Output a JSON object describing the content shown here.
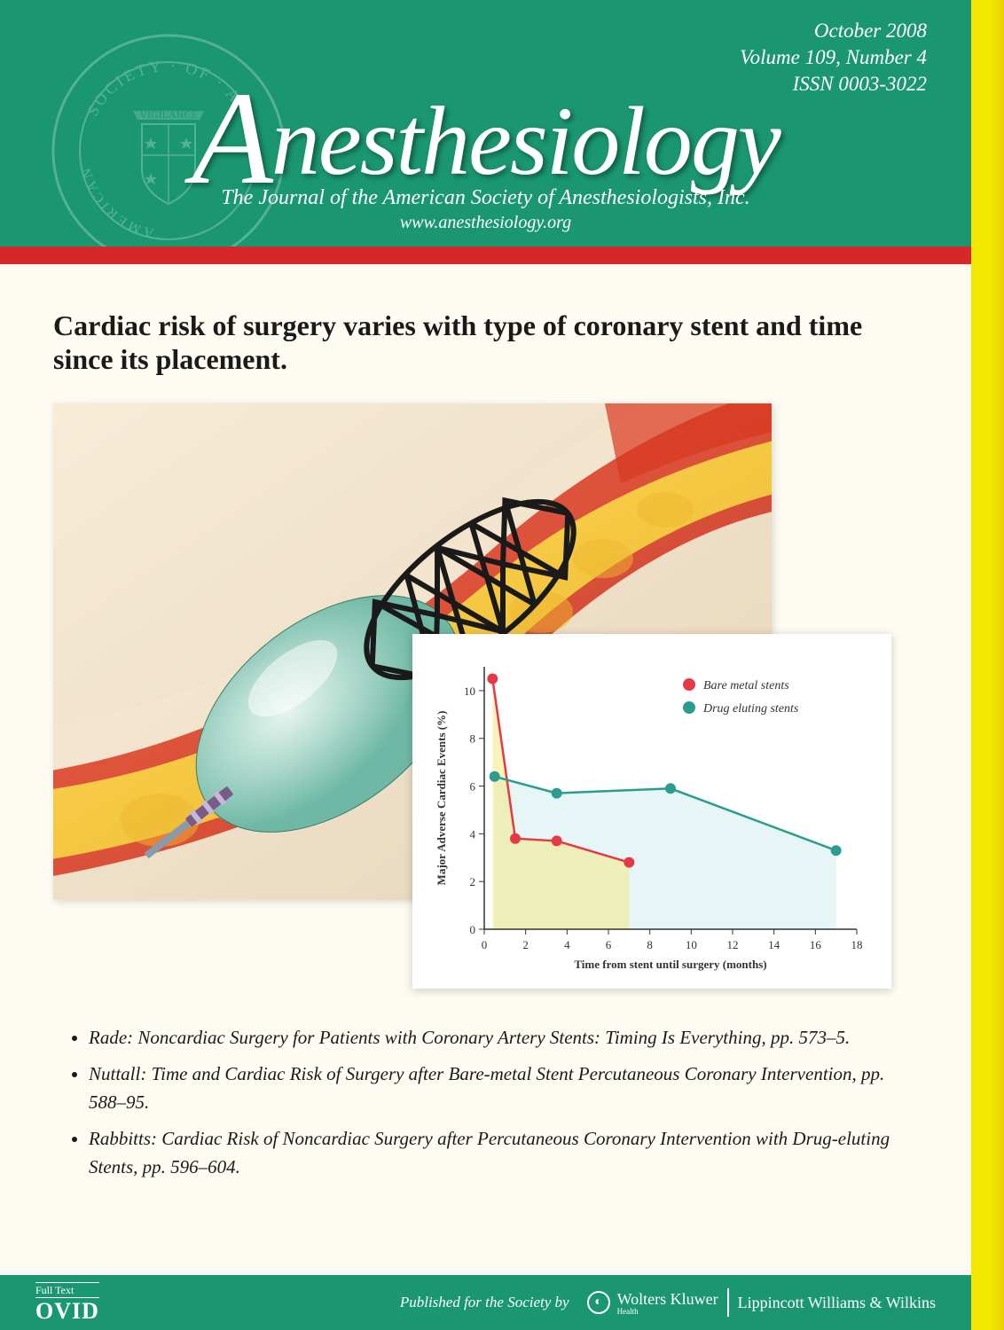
{
  "header": {
    "issue_date": "October 2008",
    "volume_line": "Volume 109, Number 4",
    "issn_line": "ISSN 0003-3022",
    "journal_title_rest": "nesthesiology",
    "subtitle": "The Journal of the American Society of Anesthesiologists, Inc.",
    "website": "www.anesthesiology.org",
    "bg_color": "#1a9770",
    "seal_text_top": "SOCIETY · OF · AN",
    "seal_text_left": "AMERICAN",
    "seal_banner": "VIGILANCE"
  },
  "accent_bar_color": "#d62828",
  "headline_text": "Cardiac risk of surgery varies with type of coronary stent and time since its placement.",
  "chart": {
    "type": "line",
    "ylabel": "Major Adverse Cardiac Events (%)",
    "xlabel": "Time from stent until surgery (months)",
    "xlim": [
      0,
      18
    ],
    "ylim": [
      0,
      11
    ],
    "xticks": [
      0,
      2,
      4,
      6,
      8,
      10,
      12,
      14,
      16,
      18
    ],
    "yticks": [
      0,
      2,
      4,
      6,
      8,
      10
    ],
    "series": [
      {
        "name": "Bare metal stents",
        "color": "#e63946",
        "fill": "#f5e97a",
        "fill_opacity": 0.5,
        "points": [
          [
            0.4,
            10.5
          ],
          [
            1.5,
            3.8
          ],
          [
            3.5,
            3.7
          ],
          [
            7,
            2.8
          ]
        ]
      },
      {
        "name": "Drug eluting stents",
        "color": "#2a9d8f",
        "fill": "#d6eef0",
        "fill_opacity": 0.6,
        "points": [
          [
            0.5,
            6.4
          ],
          [
            3.5,
            5.7
          ],
          [
            9,
            5.9
          ],
          [
            17,
            3.3
          ]
        ]
      }
    ],
    "axis_color": "#333",
    "label_fontsize": 13,
    "tick_fontsize": 13,
    "legend_fontsize": 14,
    "marker_radius": 6,
    "line_width": 2.5
  },
  "articles": [
    "Rade: Noncardiac Surgery for Patients with Coronary Artery Stents: Timing Is Everything, pp. 573–5.",
    "Nuttall: Time and Cardiac Risk of Surgery after Bare-metal Stent Percutaneous Coronary Intervention, pp. 588–95.",
    "Rabbitts: Cardiac Risk of Noncardiac Surgery after Percutaneous Coronary Intervention with Drug-eluting Stents, pp. 596–604."
  ],
  "footer": {
    "ovid_top": "Full Text",
    "ovid_main": "OVID",
    "published_by": "Published for the Society by",
    "wk_name": "Wolters Kluwer",
    "wk_sub": "Health",
    "lww": "Lippincott Williams & Wilkins"
  }
}
